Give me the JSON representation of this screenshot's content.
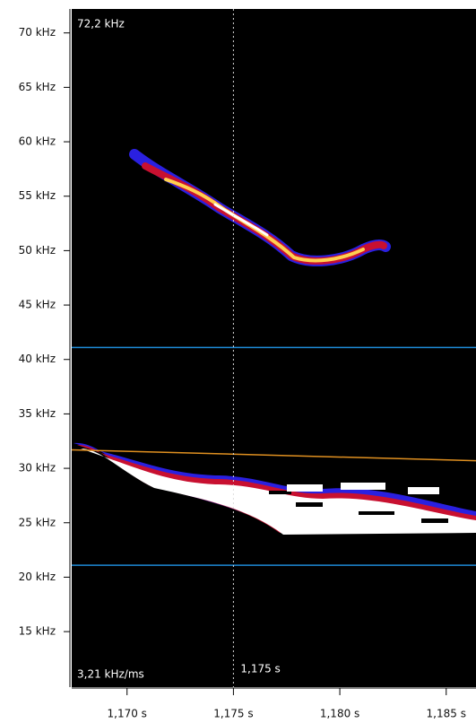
{
  "chart_data": {
    "type": "spectrogram",
    "xlim": [
      1.1674,
      1.1864
    ],
    "ylim": [
      9.9,
      72.2
    ],
    "xticks": [
      {
        "value": 1.17,
        "label": "1,170 s"
      },
      {
        "value": 1.175,
        "label": "1,175 s"
      },
      {
        "value": 1.18,
        "label": "1,180 s"
      },
      {
        "value": 1.185,
        "label": "1,185 s"
      }
    ],
    "yticks": [
      {
        "value": 15,
        "label": "15 kHz"
      },
      {
        "value": 20,
        "label": "20 kHz"
      },
      {
        "value": 25,
        "label": "25 kHz"
      },
      {
        "value": 30,
        "label": "30 kHz"
      },
      {
        "value": 35,
        "label": "35 kHz"
      },
      {
        "value": 40,
        "label": "40 kHz"
      },
      {
        "value": 45,
        "label": "45 kHz"
      },
      {
        "value": 50,
        "label": "50 kHz"
      },
      {
        "value": 55,
        "label": "55 kHz"
      },
      {
        "value": 60,
        "label": "60 kHz"
      },
      {
        "value": 65,
        "label": "65 kHz"
      },
      {
        "value": 70,
        "label": "70 kHz"
      }
    ],
    "top_label": "72,2 kHz",
    "slope_label": "3,21 kHz/ms",
    "cursor": {
      "x": 1.175,
      "label": "1,175 s"
    },
    "hlines": {
      "values": [
        41.1,
        21.1
      ],
      "color": "#1e8ad6"
    },
    "trend": {
      "x": [
        1.1674,
        1.1864
      ],
      "y": [
        31.7,
        30.7
      ],
      "color": "#e09020"
    }
  }
}
